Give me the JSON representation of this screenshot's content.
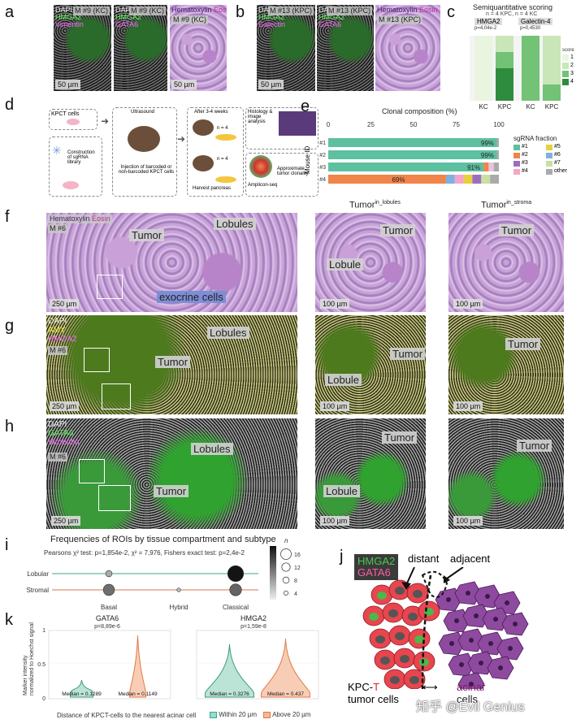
{
  "panels": {
    "a": {
      "letter": "a",
      "titles": [
        "M #9 (KC)",
        "M #9 (KC)",
        "M #9 (KC)"
      ],
      "channels1": [
        "DAPI",
        "HMGA2",
        "Vimentin"
      ],
      "channels2": [
        "DAPI",
        "HMGA2",
        "GATA6"
      ],
      "channels3_he": [
        "Hematoxylin",
        "Eosin"
      ],
      "scale": "50 µm"
    },
    "b": {
      "letter": "b",
      "titles": [
        "M #13 (KPC)",
        "M #13 (KPC)",
        "M #13 (KPC)"
      ],
      "channels1": [
        "DAPI",
        "HMGA2",
        "Galectin"
      ],
      "channels2": [
        "DAPI",
        "HMGA2",
        "GATA6"
      ],
      "channels3_he": [
        "Hematoxylin",
        "Eosin"
      ],
      "scale": "50 µm"
    },
    "c": {
      "letter": "c",
      "title": "Semiquantitative scoring",
      "subtitle": "n = 4 KPC, n = 4 KC",
      "groups": [
        "HMGA2",
        "Galectin-4"
      ],
      "pvalues": [
        "p=4,04e-2",
        "p=0,4530"
      ],
      "xlabels": [
        "KC",
        "KPC",
        "KC",
        "KPC"
      ],
      "legend_title": "score",
      "legend": [
        "1",
        "2",
        "3",
        "4"
      ]
    },
    "d": {
      "letter": "d",
      "steps": [
        "KPCT cells",
        "Construction of sgRNA library",
        "Ultrasound",
        "Injection of barcoded or non-barcoded KPCT cells",
        "After 3-4 weeks",
        "n = 4",
        "n = 4",
        "Harvest pancreas",
        "Histology & image analysis",
        "Amplicon-seq",
        "Approximate tumor clonality"
      ]
    },
    "e": {
      "letter": "e",
      "title": "Clonal composition (%)",
      "ylabel": "Mouse ID",
      "xticks": [
        "0",
        "25",
        "50",
        "75",
        "100"
      ],
      "rows": [
        "#1",
        "#2",
        "#3",
        "#4"
      ],
      "labels": [
        "99%",
        "99%",
        "91%",
        "69%"
      ],
      "legend_title": "sgRNA fraction",
      "legend": [
        "#1",
        "#5",
        "#2",
        "#6",
        "#3",
        "#7",
        "#4",
        "other"
      ]
    },
    "f": {
      "letter": "f",
      "stain": [
        "Hematoxylin",
        "Eosin"
      ],
      "mouse": "M #6",
      "labels": [
        "Lobules",
        "Tumor",
        "exocrine cells"
      ],
      "scale": "250 µm",
      "zoom1_title": "Tumor",
      "zoom1_sup": "in_lobules",
      "zoom2_title": "Tumor",
      "zoom2_sup": "in_stroma",
      "zoom1_labels": [
        "Tumor",
        "Lobule"
      ],
      "zoom2_labels": [
        "Tumor"
      ],
      "zscale": "100 µm"
    },
    "g": {
      "letter": "g",
      "channels": [
        "DAPI",
        "AMY",
        "HMGA2"
      ],
      "mouse": "M #6",
      "labels": [
        "Lobules",
        "Tumor"
      ],
      "scale": "250 µm",
      "zoom1_labels": [
        "Tumor",
        "Lobule"
      ],
      "zoom2_labels": [
        "Tumor"
      ],
      "zscale": "100 µm"
    },
    "h": {
      "letter": "h",
      "channels": [
        "DAPI",
        "GATA6",
        "Vimentin"
      ],
      "mouse": "M #6",
      "labels": [
        "Lobules",
        "Tumor"
      ],
      "scale": "250 µm",
      "zoom1_labels": [
        "Tumor",
        "Lobule"
      ],
      "zoom2_labels": [
        "Tumor"
      ],
      "zscale": "100 µm"
    },
    "i": {
      "letter": "i",
      "title": "Frequencies of ROIs by tissue compartment and subtype",
      "stats": "Pearsons χ² test: p=1,854e-2, χ² = 7,976, Fishers exact test: p=2,4e-2",
      "rows": [
        "Lobular",
        "Stromal"
      ],
      "cols": [
        "Basal",
        "Hybrid",
        "Classical"
      ],
      "legend_title": "n",
      "legend": [
        "16",
        "12",
        "8",
        "4"
      ]
    },
    "j": {
      "letter": "j",
      "markers": [
        "HMGA2",
        "GATA6"
      ],
      "labels": [
        "distant",
        "adjacent"
      ],
      "bottom_left_1": "KPC-",
      "bottom_left_T": "T",
      "bottom_left_2": "tumor cells",
      "bottom_right_1": "acinar",
      "bottom_right_2": "cells",
      "watermark": "知乎 @Evil Genius"
    },
    "k": {
      "letter": "k",
      "ylabel_1": "Marker intensity",
      "ylabel_2": "normalized to Hoechst signal",
      "yticks": [
        "0",
        "0.5",
        "1"
      ],
      "plots": [
        {
          "title": "GATA6",
          "p": "p=8,89e-6",
          "median1": "Median = 0.1289",
          "median2": "Median = 0.1149"
        },
        {
          "title": "HMGA2",
          "p": "p=1,59e-8",
          "median1": "Median = 0.3276",
          "median2": "Median = 0.437"
        }
      ],
      "legend_title": "Distance of KPCT-cells to the nearest acinar cell",
      "legend": [
        "Within 20 µm",
        "Above 20 µm"
      ]
    }
  },
  "chart_data": [
    {
      "type": "bar",
      "title": "Semiquantitative scoring",
      "categories": [
        "HMGA2 KC",
        "HMGA2 KPC",
        "Galectin-4 KC",
        "Galectin-4 KPC"
      ],
      "series": [
        {
          "name": "1",
          "values": [
            100,
            0,
            0,
            0
          ]
        },
        {
          "name": "2",
          "values": [
            0,
            25,
            0,
            75
          ]
        },
        {
          "name": "3",
          "values": [
            0,
            25,
            100,
            25
          ]
        },
        {
          "name": "4",
          "values": [
            0,
            50,
            0,
            0
          ]
        }
      ],
      "ylim": [
        0,
        100
      ]
    },
    {
      "type": "bar",
      "title": "Clonal composition (%)",
      "categories": [
        "#1",
        "#2",
        "#3",
        "#4"
      ],
      "series": [
        {
          "name": "dominant",
          "values": [
            99,
            99,
            91,
            69
          ]
        },
        {
          "name": "other",
          "values": [
            1,
            1,
            9,
            31
          ]
        }
      ],
      "xlim": [
        0,
        100
      ]
    },
    {
      "type": "scatter",
      "title": "Frequencies of ROIs by tissue compartment and subtype",
      "rows": [
        "Lobular",
        "Stromal"
      ],
      "cols": [
        "Basal",
        "Hybrid",
        "Classical"
      ],
      "n": [
        [
          3,
          0,
          18
        ],
        [
          9,
          1,
          10
        ]
      ]
    }
  ]
}
